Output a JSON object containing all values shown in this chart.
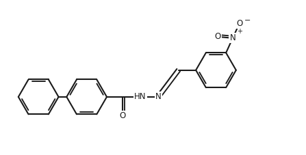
{
  "bg_color": "#ffffff",
  "line_color": "#1a1a1a",
  "line_width": 1.5,
  "dbo": 0.03,
  "figsize": [
    4.47,
    2.27
  ],
  "dpi": 100,
  "r": 0.3,
  "xlim": [
    -0.05,
    4.47
  ],
  "ylim": [
    -0.05,
    2.27
  ]
}
